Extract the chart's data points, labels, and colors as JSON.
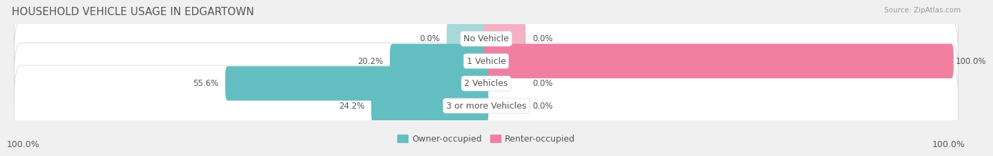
{
  "title": "HOUSEHOLD VEHICLE USAGE IN EDGARTOWN",
  "source": "Source: ZipAtlas.com",
  "categories": [
    "No Vehicle",
    "1 Vehicle",
    "2 Vehicles",
    "3 or more Vehicles"
  ],
  "owner_values": [
    0.0,
    20.2,
    55.6,
    24.2
  ],
  "renter_values": [
    0.0,
    100.0,
    0.0,
    0.0
  ],
  "owner_color": "#62bec1",
  "renter_color": "#f07fa0",
  "owner_color_light": "#a8d8d9",
  "renter_color_light": "#f5b0c5",
  "bar_height": 0.62,
  "xlim_left": -100,
  "xlim_right": 100,
  "owner_label": "Owner-occupied",
  "renter_label": "Renter-occupied",
  "bg_color": "#f0f0f0",
  "bar_bg_color": "#ffffff",
  "row_bg_color": "#f8f8f8",
  "title_color": "#555555",
  "label_color": "#555555",
  "axis_label_left": "100.0%",
  "axis_label_right": "100.0%",
  "title_fontsize": 11,
  "tick_fontsize": 9,
  "legend_fontsize": 9,
  "value_fontsize": 8.5,
  "cat_fontsize": 9
}
